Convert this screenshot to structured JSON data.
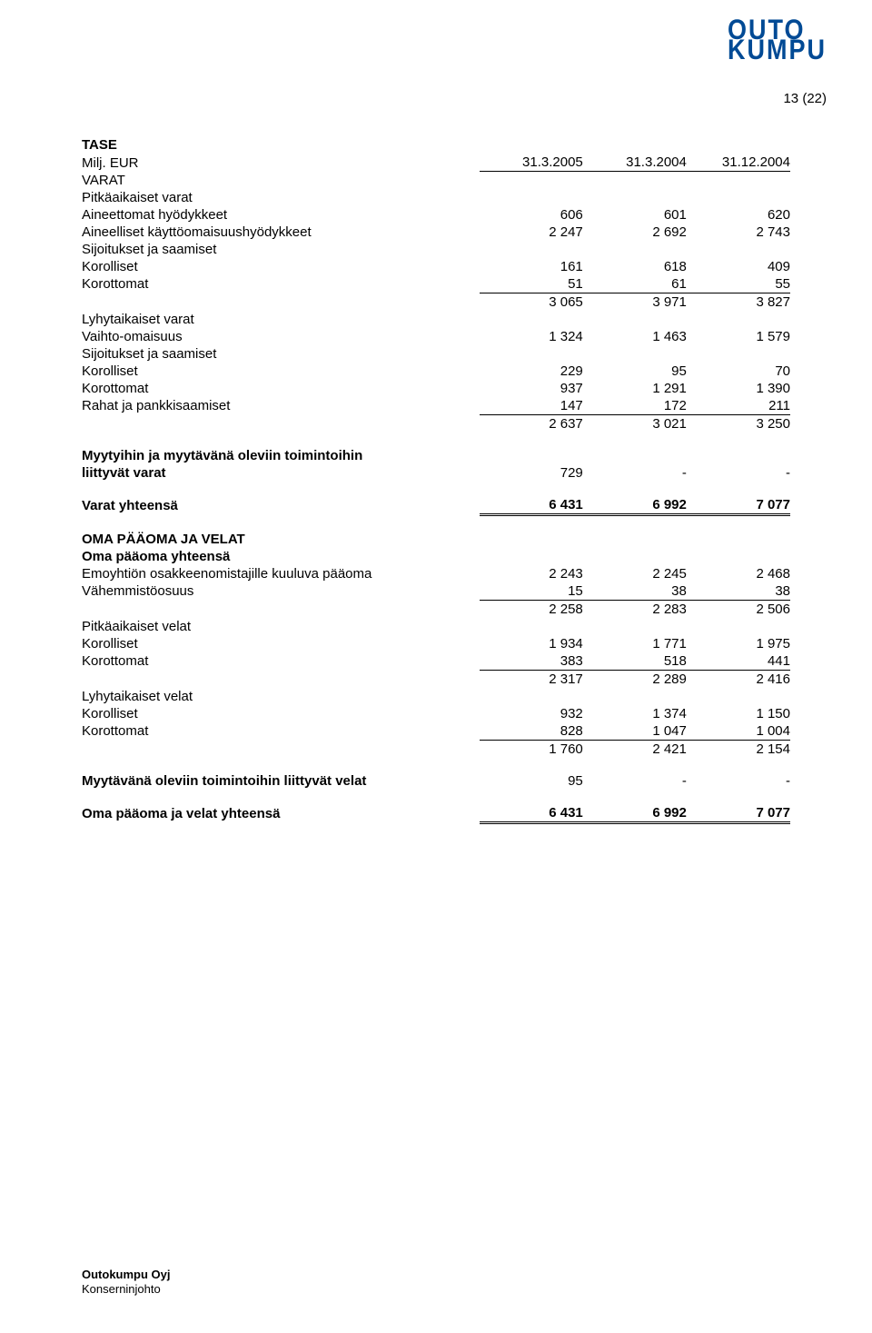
{
  "logo": {
    "line1": "OUTO",
    "line2": "KUMPU"
  },
  "page_num": "13 (22)",
  "header": {
    "title": "TASE",
    "unit_label": "Milj. EUR",
    "col1": "31.3.2005",
    "col2": "31.3.2004",
    "col3": "31.12.2004"
  },
  "rows": {
    "varat": "VARAT",
    "pitkavarat": "Pitkäaikaiset varat",
    "aineettomat": {
      "label": "Aineettomat hyödykkeet",
      "c1": "606",
      "c2": "601",
      "c3": "620"
    },
    "aineelliset": {
      "label": "Aineelliset käyttöomaisuushyödykkeet",
      "c1": "2 247",
      "c2": "2 692",
      "c3": "2 743"
    },
    "sijoitukset1": "Sijoitukset ja saamiset",
    "korolliset1": {
      "label": "  Korolliset",
      "c1": "161",
      "c2": "618",
      "c3": "409"
    },
    "korottomat1": {
      "label": "  Korottomat",
      "c1": "51",
      "c2": "61",
      "c3": "55"
    },
    "sub_pitkavarat": {
      "c1": "3 065",
      "c2": "3 971",
      "c3": "3 827"
    },
    "lyhytvarat": "Lyhytaikaiset varat",
    "vaihto": {
      "label": "Vaihto-omaisuus",
      "c1": "1 324",
      "c2": "1 463",
      "c3": "1 579"
    },
    "sijoitukset2": "Sijoitukset ja saamiset",
    "korolliset2": {
      "label": "  Korolliset",
      "c1": "229",
      "c2": "95",
      "c3": "70"
    },
    "korottomat2": {
      "label": "  Korottomat",
      "c1": "937",
      "c2": "1 291",
      "c3": "1 390"
    },
    "rahat": {
      "label": "Rahat ja pankkisaamiset",
      "c1": "147",
      "c2": "172",
      "c3": "211"
    },
    "sub_lyhytvarat": {
      "c1": "2 637",
      "c2": "3 021",
      "c3": "3 250"
    },
    "myytyihin1": "Myytyihin ja myytävänä oleviin toimintoihin",
    "myytyihin2": {
      "label": "liittyvät varat",
      "c1": "729",
      "c2": "-",
      "c3": "-"
    },
    "varat_yht": {
      "label": "Varat yhteensä",
      "c1": "6 431",
      "c2": "6 992",
      "c3": "7 077"
    },
    "omapaaoma_hdr": "OMA PÄÄOMA JA VELAT",
    "omapaaoma_sub": "Oma pääoma yhteensä",
    "emo": {
      "label": "Emoyhtiön osakkeenomistajille kuuluva pääoma",
      "c1": "2 243",
      "c2": "2 245",
      "c3": "2 468"
    },
    "vahemmisto": {
      "label": "Vähemmistöosuus",
      "c1": "15",
      "c2": "38",
      "c3": "38"
    },
    "sub_omapaa": {
      "c1": "2 258",
      "c2": "2 283",
      "c3": "2 506"
    },
    "pitkavelat": "Pitkäaikaiset velat",
    "korolliset3": {
      "label": "Korolliset",
      "c1": "1 934",
      "c2": "1 771",
      "c3": "1 975"
    },
    "korottomat3": {
      "label": "Korottomat",
      "c1": "383",
      "c2": "518",
      "c3": "441"
    },
    "sub_pitkavelat": {
      "c1": "2 317",
      "c2": "2 289",
      "c3": "2 416"
    },
    "lyhytvelat": "Lyhytaikaiset velat",
    "korolliset4": {
      "label": "Korolliset",
      "c1": "932",
      "c2": "1 374",
      "c3": "1 150"
    },
    "korottomat4": {
      "label": "Korottomat",
      "c1": "828",
      "c2": "1 047",
      "c3": "1 004"
    },
    "sub_lyhytvelat": {
      "c1": "1 760",
      "c2": "2 421",
      "c3": "2 154"
    },
    "myytavavelat": {
      "label": "Myytävänä oleviin toimintoihin liittyvät velat",
      "c1": "95",
      "c2": "-",
      "c3": "-"
    },
    "yhteensa": {
      "label": "Oma pääoma ja velat yhteensä",
      "c1": "6 431",
      "c2": "6 992",
      "c3": "7 077"
    }
  },
  "footer": {
    "l1": "Outokumpu Oyj",
    "l2": "Konserninjohto"
  }
}
